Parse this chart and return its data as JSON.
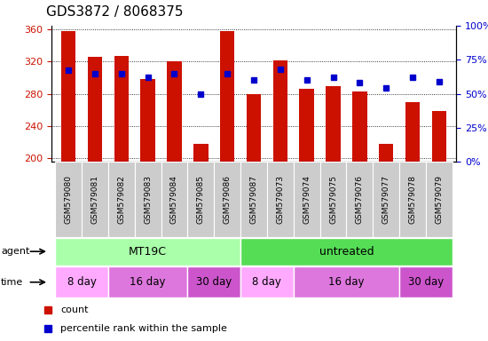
{
  "title": "GDS3872 / 8068375",
  "samples": [
    "GSM579080",
    "GSM579081",
    "GSM579082",
    "GSM579083",
    "GSM579084",
    "GSM579085",
    "GSM579086",
    "GSM579087",
    "GSM579073",
    "GSM579074",
    "GSM579075",
    "GSM579076",
    "GSM579077",
    "GSM579078",
    "GSM579079"
  ],
  "counts": [
    358,
    326,
    327,
    298,
    320,
    218,
    358,
    280,
    322,
    286,
    290,
    283,
    218,
    270,
    258
  ],
  "percentiles": [
    67,
    65,
    65,
    62,
    65,
    50,
    65,
    60,
    68,
    60,
    62,
    58,
    54,
    62,
    59
  ],
  "ylim_left": [
    195,
    365
  ],
  "ylim_right": [
    0,
    100
  ],
  "yticks_left": [
    200,
    240,
    280,
    320,
    360
  ],
  "yticks_right": [
    0,
    25,
    50,
    75,
    100
  ],
  "bar_color": "#CC1100",
  "dot_color": "#0000CC",
  "agent_groups": [
    {
      "text": "MT19C",
      "start": 0,
      "end": 7,
      "color": "#AAFFAA"
    },
    {
      "text": "untreated",
      "start": 7,
      "end": 15,
      "color": "#55DD55"
    }
  ],
  "time_groups": [
    {
      "text": "8 day",
      "start": 0,
      "end": 2,
      "color": "#FFAAFF"
    },
    {
      "text": "16 day",
      "start": 2,
      "end": 5,
      "color": "#DD77DD"
    },
    {
      "text": "30 day",
      "start": 5,
      "end": 7,
      "color": "#CC55CC"
    },
    {
      "text": "8 day",
      "start": 7,
      "end": 9,
      "color": "#FFAAFF"
    },
    {
      "text": "16 day",
      "start": 9,
      "end": 13,
      "color": "#DD77DD"
    },
    {
      "text": "30 day",
      "start": 13,
      "end": 15,
      "color": "#CC55CC"
    }
  ],
  "legend_items": [
    {
      "label": "count",
      "color": "#CC1100"
    },
    {
      "label": "percentile rank within the sample",
      "color": "#0000CC"
    }
  ],
  "sample_bg": "#CCCCCC",
  "title_fontsize": 11,
  "tick_fontsize": 8,
  "label_fontsize": 6.5
}
